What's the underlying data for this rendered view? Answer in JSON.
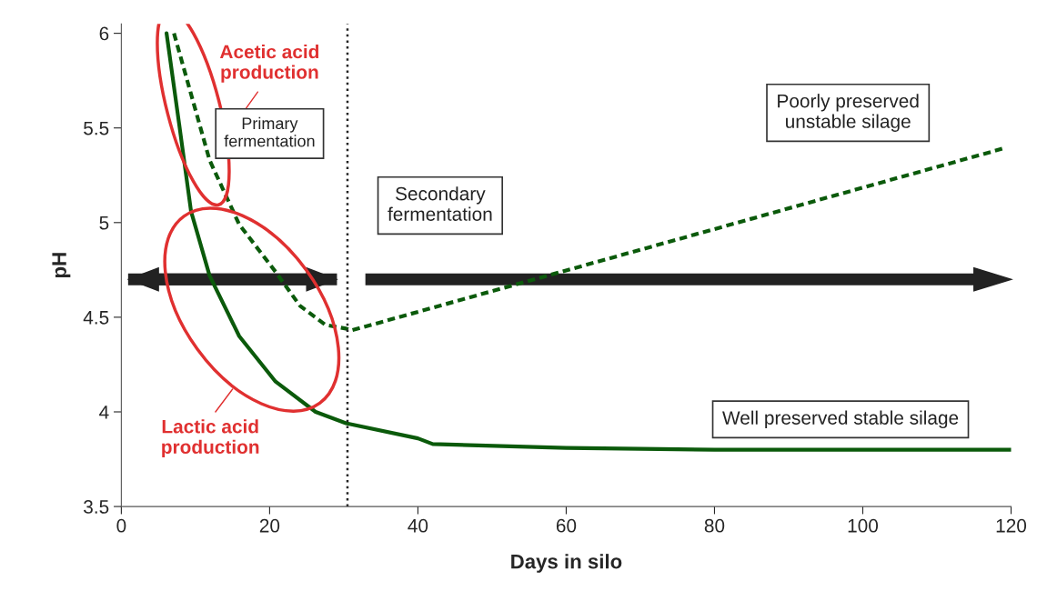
{
  "chart_data": {
    "type": "line",
    "xlabel": "Days in silo",
    "ylabel": "pH",
    "series": [
      {
        "color": "#0b5a0b",
        "line_style": "solid",
        "x": [
          6.1,
          7.8,
          9.4,
          11.9,
          15.9,
          20.8,
          26.2,
          30.3,
          40,
          42,
          60,
          80,
          120
        ],
        "values": [
          6.0,
          5.52,
          5.06,
          4.72,
          4.4,
          4.16,
          4.0,
          3.94,
          3.86,
          3.83,
          3.81,
          3.8,
          3.8
        ]
      },
      {
        "color": "#0b5a0b",
        "line_style": "dashed",
        "x": [
          7.1,
          11.9,
          15.9,
          20.8,
          24.1,
          27.5,
          30.3,
          31,
          118.8
        ],
        "values": [
          6.0,
          5.33,
          4.99,
          4.74,
          4.56,
          4.46,
          4.44,
          4.43,
          5.39
        ]
      }
    ],
    "annotations": [
      "Acetic acid production",
      "Lactic acid production",
      "Primary fermentation",
      "Secondary fermentation",
      "Poorly preserved unstable silage",
      "Well preserved stable silage"
    ],
    "ref_lines": [
      {
        "axis": "x",
        "value": 30.5,
        "color": "#222222",
        "line_style": "dotted"
      }
    ],
    "xlim": [
      0,
      120
    ],
    "ylim": [
      3.5,
      6.05
    ],
    "xticks": [
      0,
      20,
      40,
      60,
      80,
      100,
      120
    ],
    "yticks": [
      3.5,
      4,
      4.5,
      5,
      5.5,
      6
    ],
    "grid": false,
    "legend": false,
    "marker": "none"
  }
}
